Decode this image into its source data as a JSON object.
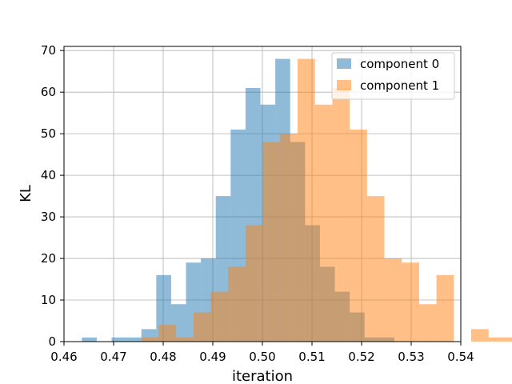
{
  "chart_data": {
    "type": "histogram",
    "title": "",
    "xlabel": "iteration",
    "ylabel": "KL",
    "xlim": [
      0.46,
      0.54
    ],
    "ylim": [
      0,
      71
    ],
    "grid": true,
    "legend_position": "top-right",
    "x_ticks": [
      0.46,
      0.47,
      0.48,
      0.49,
      0.5,
      0.51,
      0.52,
      0.53,
      0.54
    ],
    "x_tick_labels": [
      "0.46",
      "0.47",
      "0.48",
      "0.49",
      "0.50",
      "0.51",
      "0.52",
      "0.53",
      "0.54"
    ],
    "y_ticks": [
      0,
      10,
      20,
      30,
      40,
      50,
      60,
      70
    ],
    "y_tick_labels": [
      "0",
      "10",
      "20",
      "30",
      "40",
      "50",
      "60",
      "70"
    ],
    "series": [
      {
        "name": "component 0",
        "color": "#1f77b4",
        "alpha": 0.5,
        "bins": [
          [
            0.4636,
            0.4666,
            1
          ],
          [
            0.4666,
            0.4696,
            0
          ],
          [
            0.4696,
            0.4726,
            1
          ],
          [
            0.4726,
            0.4756,
            1
          ],
          [
            0.4756,
            0.4786,
            3
          ],
          [
            0.4786,
            0.4816,
            0
          ],
          [
            0.4786,
            0.4816,
            16
          ],
          [
            0.4816,
            0.4846,
            9
          ],
          [
            0.4846,
            0.4876,
            19
          ],
          [
            0.4876,
            0.4906,
            20
          ],
          [
            0.4906,
            0.4936,
            35
          ],
          [
            0.4936,
            0.4966,
            51
          ],
          [
            0.4966,
            0.4996,
            61
          ],
          [
            0.4996,
            0.5026,
            57
          ],
          [
            0.5026,
            0.5056,
            68
          ],
          [
            0.5056,
            0.5086,
            48
          ],
          [
            0.5086,
            0.5116,
            28
          ],
          [
            0.5116,
            0.5146,
            18
          ],
          [
            0.5146,
            0.5176,
            12
          ],
          [
            0.5176,
            0.5206,
            7
          ],
          [
            0.5206,
            0.5236,
            1
          ],
          [
            0.5236,
            0.5266,
            1
          ]
        ]
      },
      {
        "name": "component 1",
        "color": "#ff7f0e",
        "alpha": 0.5,
        "bins": [
          [
            0.4756,
            0.4791,
            1
          ],
          [
            0.4791,
            0.4826,
            4
          ],
          [
            0.4826,
            0.4861,
            1
          ],
          [
            0.4861,
            0.4896,
            7
          ],
          [
            0.4896,
            0.4931,
            12
          ],
          [
            0.4931,
            0.4966,
            18
          ],
          [
            0.4966,
            0.5001,
            28
          ],
          [
            0.5001,
            0.5036,
            48
          ],
          [
            0.5036,
            0.5071,
            50
          ],
          [
            0.5071,
            0.5106,
            68
          ],
          [
            0.5106,
            0.5141,
            57
          ],
          [
            0.5141,
            0.5176,
            61
          ],
          [
            0.5176,
            0.5211,
            51
          ],
          [
            0.5211,
            0.5246,
            35
          ],
          [
            0.5246,
            0.5281,
            20
          ],
          [
            0.5281,
            0.5316,
            19
          ],
          [
            0.5316,
            0.5351,
            9
          ],
          [
            0.5351,
            0.5386,
            16
          ],
          [
            0.5386,
            0.5421,
            0
          ],
          [
            0.5421,
            0.5456,
            3
          ],
          [
            0.5456,
            0.5491,
            1
          ],
          [
            0.5491,
            0.5526,
            1
          ]
        ]
      }
    ]
  }
}
